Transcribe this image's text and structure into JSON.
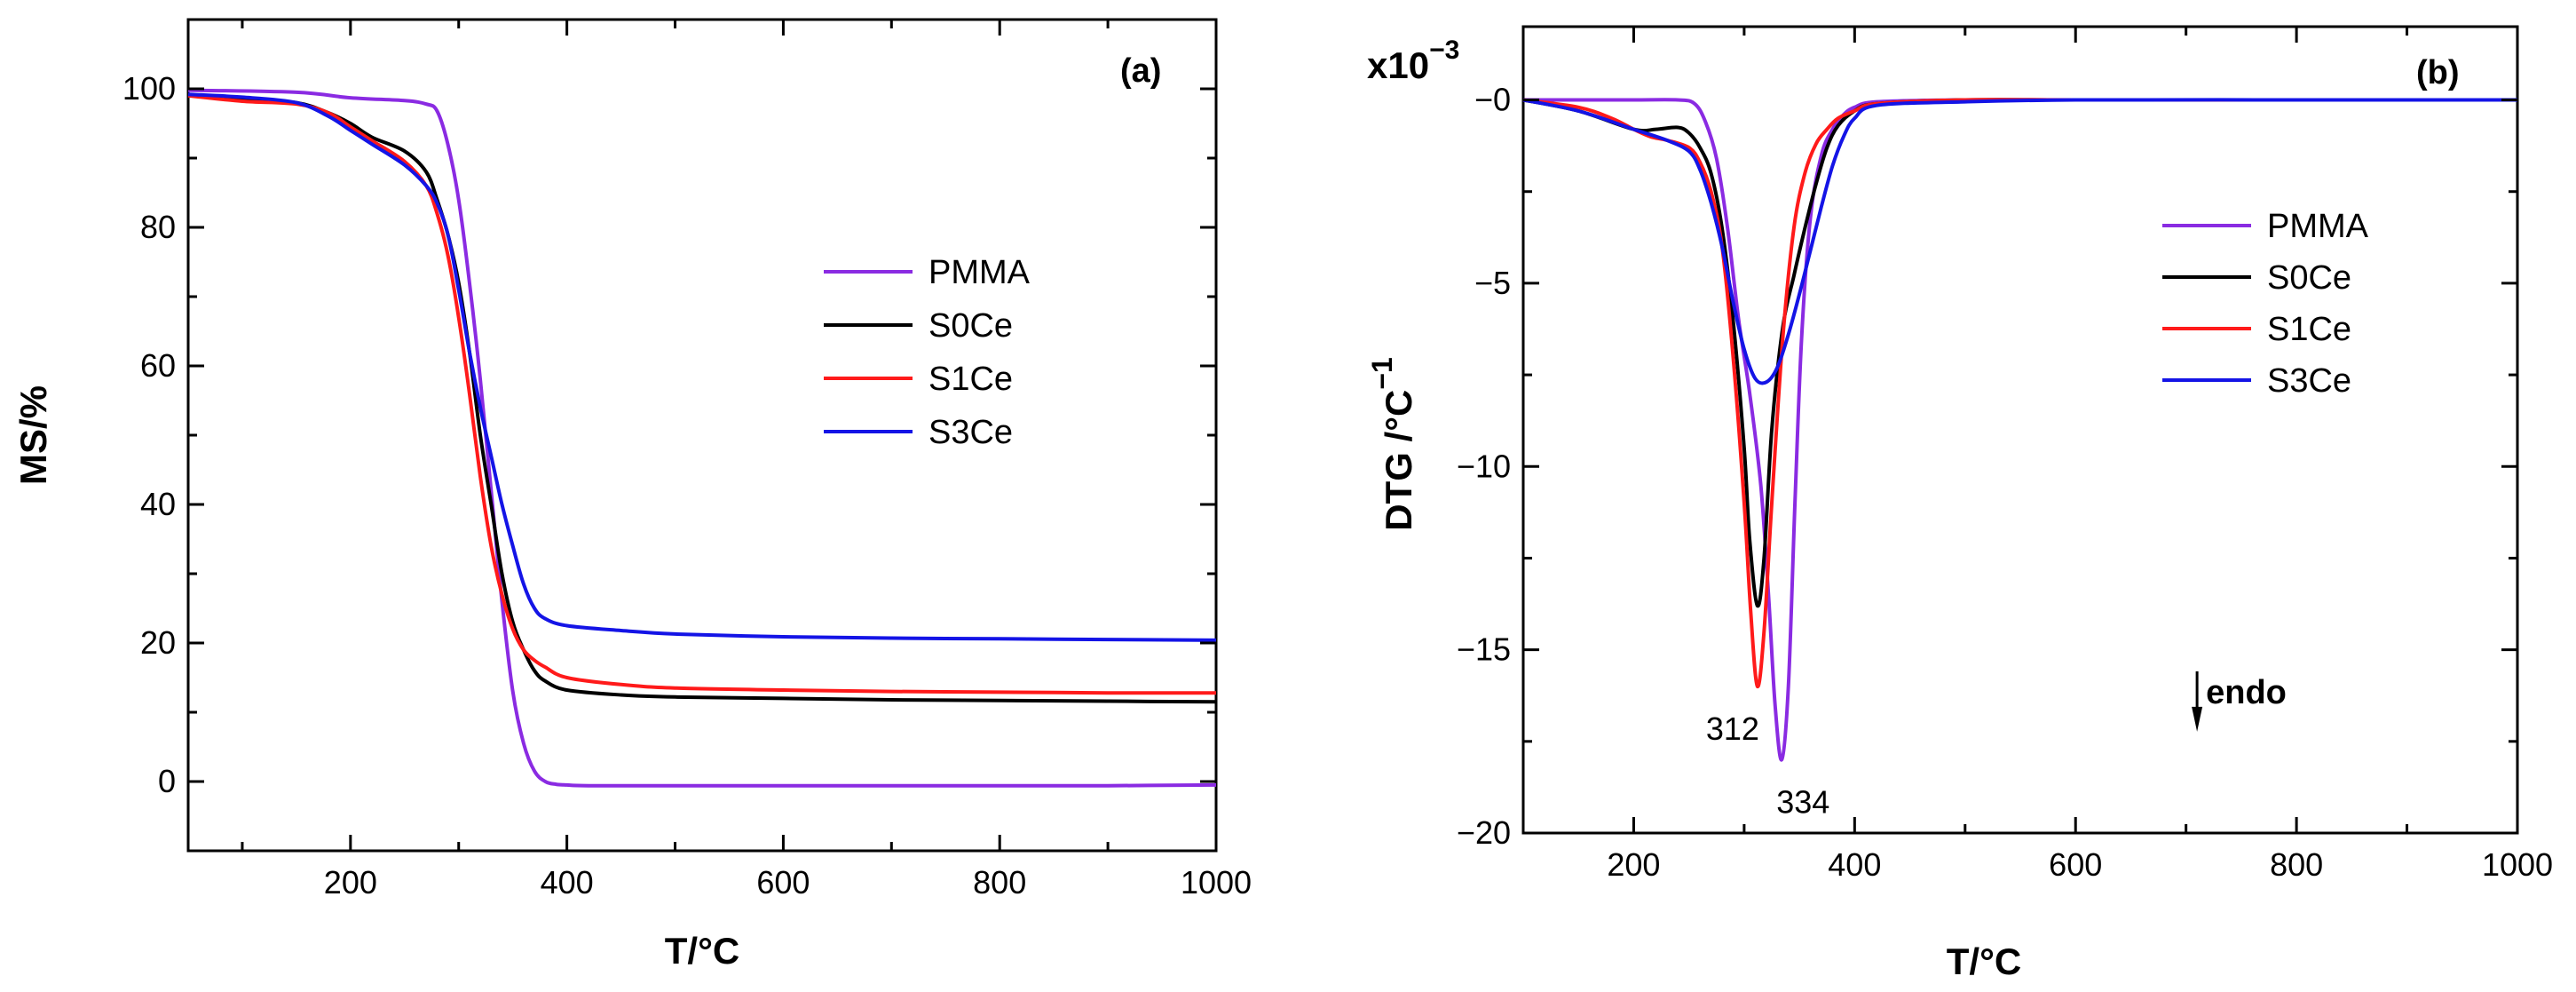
{
  "chart_data": [
    {
      "type": "line",
      "panel_label": "(a)",
      "xlabel": "T/°C",
      "ylabel": "MS/%",
      "xlim": [
        50,
        1000
      ],
      "ylim": [
        -10,
        110
      ],
      "xticks": [
        200,
        400,
        600,
        800,
        1000
      ],
      "yticks": [
        0,
        20,
        40,
        60,
        80,
        100
      ],
      "legend_position": "center-right",
      "series": [
        {
          "name": "PMMA",
          "color": "#8a2be2",
          "x": [
            50,
            150,
            200,
            250,
            270,
            280,
            290,
            300,
            310,
            320,
            330,
            340,
            350,
            360,
            370,
            380,
            390,
            400,
            420,
            500,
            600,
            700,
            800,
            900,
            1000
          ],
          "y": [
            99.8,
            99.5,
            98.7,
            98.3,
            97.8,
            96.8,
            92,
            84,
            72,
            58,
            42,
            26,
            13,
            5.5,
            1.5,
            0,
            -0.4,
            -0.5,
            -0.6,
            -0.6,
            -0.6,
            -0.6,
            -0.6,
            -0.6,
            -0.5
          ]
        },
        {
          "name": "S0Ce",
          "color": "#000000",
          "x": [
            50,
            100,
            150,
            180,
            200,
            220,
            250,
            270,
            280,
            290,
            300,
            310,
            320,
            330,
            340,
            350,
            360,
            370,
            380,
            400,
            450,
            500,
            600,
            700,
            800,
            900,
            1000
          ],
          "y": [
            99,
            98.5,
            98,
            96.5,
            95,
            93,
            91,
            88,
            84,
            79,
            72,
            62,
            50,
            40,
            30,
            23,
            19,
            16,
            14.5,
            13.2,
            12.5,
            12.2,
            12,
            11.8,
            11.7,
            11.6,
            11.5
          ]
        },
        {
          "name": "S1Ce",
          "color": "#ff1a1a",
          "x": [
            50,
            100,
            150,
            180,
            200,
            220,
            250,
            270,
            280,
            290,
            300,
            310,
            320,
            330,
            340,
            350,
            360,
            370,
            380,
            400,
            450,
            500,
            600,
            700,
            800,
            900,
            1000
          ],
          "y": [
            99,
            98.2,
            97.8,
            96.5,
            94.5,
            92.5,
            89.5,
            86,
            82,
            76,
            67,
            56,
            44,
            34,
            27,
            22,
            19,
            17.5,
            16.5,
            15,
            14,
            13.5,
            13.2,
            13,
            12.9,
            12.8,
            12.8
          ]
        },
        {
          "name": "S3Ce",
          "color": "#1414e6",
          "x": [
            50,
            100,
            150,
            180,
            200,
            220,
            250,
            270,
            280,
            290,
            300,
            310,
            320,
            330,
            340,
            350,
            360,
            370,
            380,
            400,
            450,
            500,
            600,
            700,
            800,
            900,
            1000
          ],
          "y": [
            99.2,
            98.8,
            98,
            96,
            94,
            92,
            89,
            86,
            83.5,
            79,
            71,
            62,
            54,
            47,
            40,
            34,
            28.5,
            25,
            23.5,
            22.5,
            21.8,
            21.3,
            20.9,
            20.7,
            20.6,
            20.5,
            20.4
          ]
        }
      ]
    },
    {
      "type": "line",
      "panel_label": "(b)",
      "xlabel": "T/°C",
      "ylabel": "DTG /°C",
      "ylabel_exponent": "−1",
      "y_multiplier": "x10",
      "y_multiplier_exponent": "−3",
      "xlim": [
        100,
        1000
      ],
      "ylim": [
        -20,
        2
      ],
      "xticks": [
        200,
        400,
        600,
        800,
        1000
      ],
      "yticks": [
        0,
        -5,
        -10,
        -15,
        -20
      ],
      "ytick_labels": [
        "−0",
        "−5",
        "−10",
        "−15",
        "−20"
      ],
      "legend_position": "center-right",
      "annotations": [
        {
          "text": "312",
          "x": 312,
          "y": -16
        },
        {
          "text": "334",
          "x": 334,
          "y": -18.1
        },
        {
          "text": "endo",
          "x": 710,
          "y": -16.8
        }
      ],
      "series": [
        {
          "name": "PMMA",
          "color": "#8a2be2",
          "x": [
            100,
            150,
            200,
            240,
            255,
            265,
            275,
            285,
            295,
            305,
            315,
            322,
            328,
            334,
            340,
            346,
            352,
            360,
            370,
            380,
            390,
            400,
            420,
            500,
            600,
            800,
            1000
          ],
          "y": [
            0,
            0,
            0,
            0,
            -0.1,
            -0.6,
            -1.6,
            -3.5,
            -6,
            -8,
            -10.5,
            -13.5,
            -16.5,
            -18,
            -16,
            -11,
            -6.5,
            -3.2,
            -1.5,
            -0.8,
            -0.4,
            -0.2,
            -0.05,
            0,
            0,
            0,
            0
          ]
        },
        {
          "name": "S0Ce",
          "color": "#000000",
          "x": [
            100,
            150,
            200,
            220,
            240,
            250,
            260,
            270,
            280,
            290,
            300,
            305,
            312,
            318,
            325,
            335,
            345,
            355,
            365,
            375,
            385,
            400,
            420,
            500,
            600,
            800,
            1000
          ],
          "y": [
            0,
            -0.3,
            -0.8,
            -0.8,
            -0.75,
            -0.9,
            -1.3,
            -2,
            -3.5,
            -6,
            -9.5,
            -12,
            -13.8,
            -12.5,
            -9,
            -6.2,
            -4.8,
            -3.5,
            -2.3,
            -1.3,
            -0.7,
            -0.3,
            -0.1,
            0,
            0,
            0,
            0
          ]
        },
        {
          "name": "S1Ce",
          "color": "#ff1a1a",
          "x": [
            100,
            150,
            180,
            200,
            215,
            230,
            250,
            260,
            270,
            280,
            290,
            300,
            306,
            312,
            318,
            325,
            335,
            345,
            355,
            365,
            375,
            385,
            400,
            420,
            500,
            600,
            800,
            1000
          ],
          "y": [
            0,
            -0.2,
            -0.5,
            -0.8,
            -1,
            -1.1,
            -1.3,
            -1.7,
            -2.5,
            -4,
            -7,
            -11,
            -14,
            -16,
            -14.5,
            -11,
            -6.5,
            -3.5,
            -2,
            -1.2,
            -0.8,
            -0.5,
            -0.3,
            -0.1,
            0,
            0,
            0,
            0
          ]
        },
        {
          "name": "S3Ce",
          "color": "#1414e6",
          "x": [
            100,
            150,
            200,
            230,
            250,
            260,
            270,
            280,
            290,
            300,
            310,
            320,
            330,
            340,
            350,
            360,
            370,
            380,
            390,
            400,
            420,
            500,
            600,
            800,
            1000
          ],
          "y": [
            0,
            -0.3,
            -0.8,
            -1.1,
            -1.4,
            -1.9,
            -2.8,
            -4,
            -5.5,
            -6.8,
            -7.6,
            -7.7,
            -7.3,
            -6.4,
            -5.3,
            -4.1,
            -2.9,
            -1.8,
            -1,
            -0.5,
            -0.15,
            -0.05,
            0,
            0,
            0
          ]
        }
      ]
    }
  ]
}
